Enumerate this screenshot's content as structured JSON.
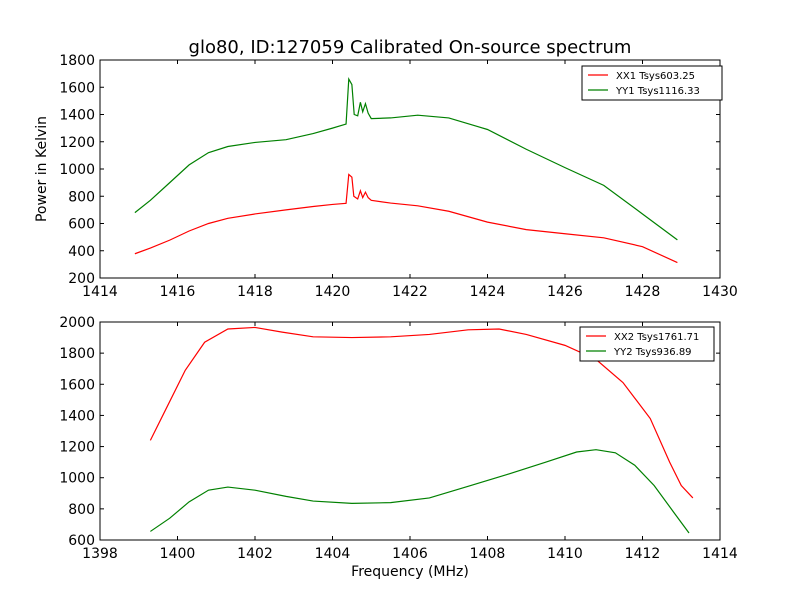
{
  "figure": {
    "title": "glo80, ID:127059 Calibrated On-source spectrum"
  },
  "chart_data": [
    {
      "type": "line",
      "title": "glo80, ID:127059 Calibrated On-source spectrum",
      "xlabel": "",
      "ylabel": "Power in Kelvin",
      "xlim": [
        1414,
        1430
      ],
      "ylim": [
        200,
        1800
      ],
      "xticks": [
        1414,
        1416,
        1418,
        1420,
        1422,
        1424,
        1426,
        1428,
        1430
      ],
      "yticks": [
        200,
        400,
        600,
        800,
        1000,
        1200,
        1400,
        1600,
        1800
      ],
      "grid": false,
      "legend_position": "top-right",
      "series": [
        {
          "name": "XX1 Tsys603.25",
          "color": "#ff0000",
          "points": [
            [
              1414.9,
              378
            ],
            [
              1415.3,
              420
            ],
            [
              1415.8,
              478
            ],
            [
              1416.3,
              545
            ],
            [
              1416.8,
              600
            ],
            [
              1417.3,
              638
            ],
            [
              1418.0,
              670
            ],
            [
              1418.8,
              700
            ],
            [
              1419.5,
              725
            ],
            [
              1420.0,
              740
            ],
            [
              1420.35,
              748
            ],
            [
              1420.42,
              960
            ],
            [
              1420.5,
              940
            ],
            [
              1420.55,
              800
            ],
            [
              1420.65,
              780
            ],
            [
              1420.72,
              840
            ],
            [
              1420.78,
              790
            ],
            [
              1420.85,
              830
            ],
            [
              1420.92,
              790
            ],
            [
              1421.0,
              770
            ],
            [
              1421.5,
              750
            ],
            [
              1422.2,
              730
            ],
            [
              1423.0,
              690
            ],
            [
              1424.0,
              610
            ],
            [
              1425.0,
              555
            ],
            [
              1426.0,
              525
            ],
            [
              1427.0,
              495
            ],
            [
              1428.0,
              430
            ],
            [
              1428.9,
              313
            ]
          ]
        },
        {
          "name": "YY1 Tsys1116.33",
          "color": "#008000",
          "points": [
            [
              1414.9,
              680
            ],
            [
              1415.3,
              770
            ],
            [
              1415.8,
              900
            ],
            [
              1416.3,
              1030
            ],
            [
              1416.8,
              1120
            ],
            [
              1417.3,
              1165
            ],
            [
              1418.0,
              1195
            ],
            [
              1418.8,
              1215
            ],
            [
              1419.5,
              1260
            ],
            [
              1420.0,
              1300
            ],
            [
              1420.35,
              1330
            ],
            [
              1420.42,
              1660
            ],
            [
              1420.5,
              1620
            ],
            [
              1420.56,
              1400
            ],
            [
              1420.65,
              1390
            ],
            [
              1420.72,
              1490
            ],
            [
              1420.78,
              1420
            ],
            [
              1420.85,
              1480
            ],
            [
              1420.92,
              1410
            ],
            [
              1421.0,
              1370
            ],
            [
              1421.5,
              1375
            ],
            [
              1422.2,
              1395
            ],
            [
              1423.0,
              1375
            ],
            [
              1424.0,
              1290
            ],
            [
              1425.0,
              1145
            ],
            [
              1426.0,
              1010
            ],
            [
              1427.0,
              880
            ],
            [
              1428.0,
              670
            ],
            [
              1428.9,
              480
            ]
          ]
        }
      ]
    },
    {
      "type": "line",
      "title": "",
      "xlabel": "Frequency (MHz)",
      "ylabel": "",
      "xlim": [
        1398,
        1414
      ],
      "ylim": [
        600,
        2000
      ],
      "xticks": [
        1398,
        1400,
        1402,
        1404,
        1406,
        1408,
        1410,
        1412,
        1414
      ],
      "yticks": [
        600,
        800,
        1000,
        1200,
        1400,
        1600,
        1800,
        2000
      ],
      "grid": false,
      "legend_position": "top-right",
      "series": [
        {
          "name": "XX2 Tsys1761.71",
          "color": "#ff0000",
          "points": [
            [
              1399.3,
              1240
            ],
            [
              1399.7,
              1440
            ],
            [
              1400.2,
              1690
            ],
            [
              1400.7,
              1870
            ],
            [
              1401.3,
              1955
            ],
            [
              1402.0,
              1965
            ],
            [
              1402.7,
              1935
            ],
            [
              1403.5,
              1905
            ],
            [
              1404.5,
              1900
            ],
            [
              1405.5,
              1905
            ],
            [
              1406.5,
              1920
            ],
            [
              1407.5,
              1950
            ],
            [
              1408.3,
              1955
            ],
            [
              1409.0,
              1920
            ],
            [
              1410.0,
              1850
            ],
            [
              1410.8,
              1760
            ],
            [
              1411.5,
              1610
            ],
            [
              1412.2,
              1380
            ],
            [
              1412.7,
              1100
            ],
            [
              1413.0,
              950
            ],
            [
              1413.3,
              870
            ]
          ]
        },
        {
          "name": "YY2 Tsys936.89",
          "color": "#008000",
          "points": [
            [
              1399.3,
              655
            ],
            [
              1399.8,
              740
            ],
            [
              1400.3,
              845
            ],
            [
              1400.8,
              920
            ],
            [
              1401.3,
              940
            ],
            [
              1402.0,
              920
            ],
            [
              1402.8,
              880
            ],
            [
              1403.5,
              850
            ],
            [
              1404.5,
              835
            ],
            [
              1405.5,
              840
            ],
            [
              1406.5,
              870
            ],
            [
              1407.5,
              945
            ],
            [
              1408.5,
              1020
            ],
            [
              1409.5,
              1100
            ],
            [
              1410.3,
              1165
            ],
            [
              1410.8,
              1180
            ],
            [
              1411.3,
              1160
            ],
            [
              1411.8,
              1080
            ],
            [
              1412.3,
              950
            ],
            [
              1412.8,
              780
            ],
            [
              1413.2,
              645
            ]
          ]
        }
      ]
    }
  ]
}
